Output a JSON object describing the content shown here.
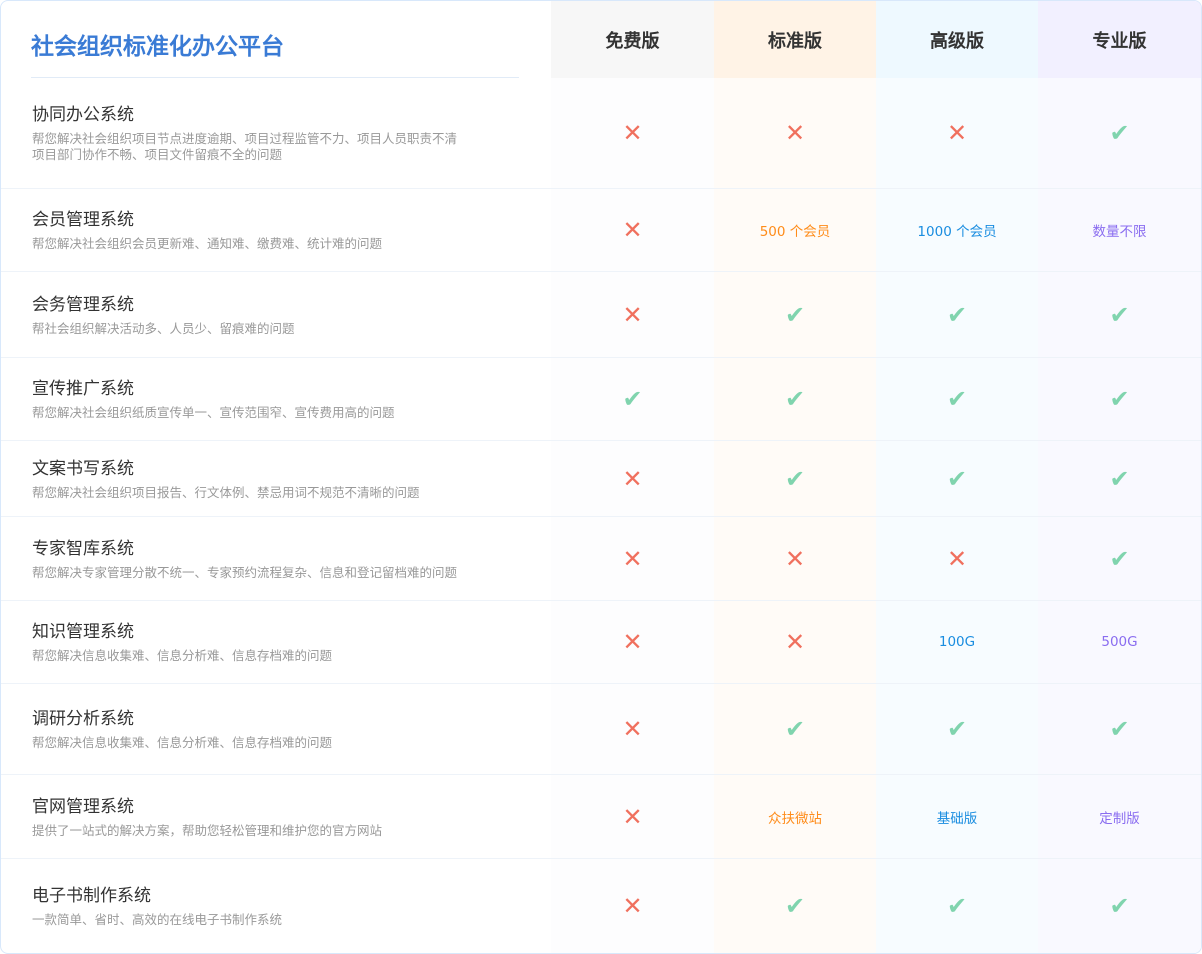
{
  "title": "社会组织标准化办公平台",
  "plans": [
    "免费版",
    "标准版",
    "高级版",
    "专业版"
  ],
  "colors": {
    "title": "#3a7bd5",
    "cross": "#f0705e",
    "check": "#80d4ae",
    "standard": "#ff8c1a",
    "advanced": "#1a8de0",
    "pro": "#8a6df0"
  },
  "rows": [
    {
      "name": "协同办公系统",
      "desc": "帮您解决社会组织项目节点进度逾期、项目过程监管不力、项目人员职责不清\n项目部门协作不畅、项目文件留痕不全的问题",
      "cells": [
        "x",
        "x",
        "x",
        "check"
      ]
    },
    {
      "name": "会员管理系统",
      "desc": "帮您解决社会组织会员更新难、通知难、缴费难、统计难的问题",
      "cells": [
        "x",
        "500 个会员",
        "1000 个会员",
        "数量不限"
      ]
    },
    {
      "name": "会务管理系统",
      "desc": "帮社会组织解决活动多、人员少、留痕难的问题",
      "cells": [
        "x",
        "check",
        "check",
        "check"
      ]
    },
    {
      "name": "宣传推广系统",
      "desc": "帮您解决社会组织纸质宣传单一、宣传范围窄、宣传费用高的问题",
      "cells": [
        "check",
        "check",
        "check",
        "check"
      ]
    },
    {
      "name": "文案书写系统",
      "desc": "帮您解决社会组织项目报告、行文体例、禁忌用词不规范不清晰的问题",
      "cells": [
        "x",
        "check",
        "check",
        "check"
      ]
    },
    {
      "name": "专家智库系统",
      "desc": "帮您解决专家管理分散不统一、专家预约流程复杂、信息和登记留档难的问题",
      "cells": [
        "x",
        "x",
        "x",
        "check"
      ]
    },
    {
      "name": "知识管理系统",
      "desc": "帮您解决信息收集难、信息分析难、信息存档难的问题",
      "cells": [
        "x",
        "x",
        "100G",
        "500G"
      ]
    },
    {
      "name": "调研分析系统",
      "desc": "帮您解决信息收集难、信息分析难、信息存档难的问题",
      "cells": [
        "x",
        "check",
        "check",
        "check"
      ]
    },
    {
      "name": "官网管理系统",
      "desc": "提供了一站式的解决方案，帮助您轻松管理和维护您的官方网站",
      "cells": [
        "x",
        "众扶微站",
        "基础版",
        "定制版"
      ]
    },
    {
      "name": "电子书制作系统",
      "desc": "一款简单、省时、高效的在线电子书制作系统",
      "cells": [
        "x",
        "check",
        "check",
        "check"
      ]
    }
  ]
}
